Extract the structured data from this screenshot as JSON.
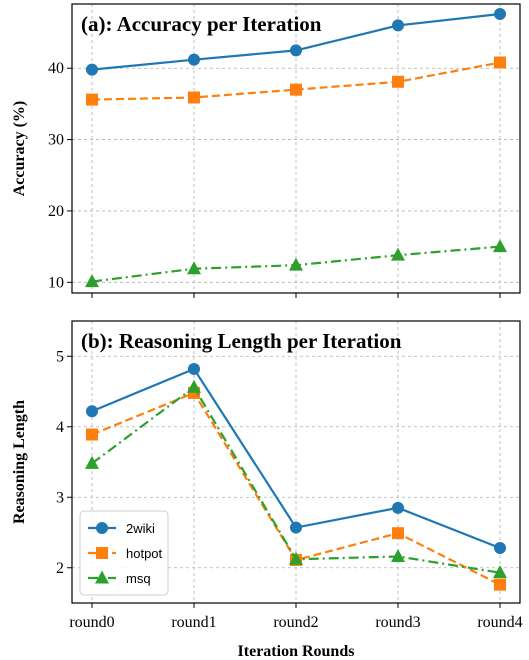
{
  "chart_data": [
    {
      "type": "line",
      "title": "(a): Accuracy per Iteration",
      "xlabel": "",
      "ylabel": "Accuracy (%)",
      "categories": [
        "round0",
        "round1",
        "round2",
        "round3",
        "round4"
      ],
      "yticks": [
        10,
        20,
        30,
        40
      ],
      "ylim": [
        8.5,
        49
      ],
      "grid": true,
      "series": [
        {
          "name": "2wiki",
          "values": [
            39.8,
            41.2,
            42.5,
            46.0,
            47.6
          ],
          "color": "#1f77b4",
          "dash": "solid",
          "marker": "circle"
        },
        {
          "name": "hotpot",
          "values": [
            35.6,
            35.9,
            37.0,
            38.1,
            40.8
          ],
          "color": "#ff7f0e",
          "dash": "dashed",
          "marker": "square"
        },
        {
          "name": "msq",
          "values": [
            10.1,
            11.9,
            12.4,
            13.8,
            15.0
          ],
          "color": "#2ca02c",
          "dash": "dashdot",
          "marker": "triangle"
        }
      ]
    },
    {
      "type": "line",
      "title": "(b): Reasoning Length per Iteration",
      "xlabel": "Iteration Rounds",
      "ylabel": "Reasoning Length",
      "categories": [
        "round0",
        "round1",
        "round2",
        "round3",
        "round4"
      ],
      "yticks": [
        2,
        3,
        4,
        5
      ],
      "ylim": [
        1.5,
        5.5
      ],
      "grid": true,
      "legend": "lower-left",
      "series": [
        {
          "name": "2wiki",
          "values": [
            4.22,
            4.82,
            2.57,
            2.85,
            2.28
          ],
          "color": "#1f77b4",
          "dash": "solid",
          "marker": "circle"
        },
        {
          "name": "hotpot",
          "values": [
            3.89,
            4.48,
            2.11,
            2.49,
            1.76
          ],
          "color": "#ff7f0e",
          "dash": "dashed",
          "marker": "square"
        },
        {
          "name": "msq",
          "values": [
            3.48,
            4.56,
            2.12,
            2.16,
            1.93
          ],
          "color": "#2ca02c",
          "dash": "dashdot",
          "marker": "triangle"
        }
      ]
    }
  ]
}
